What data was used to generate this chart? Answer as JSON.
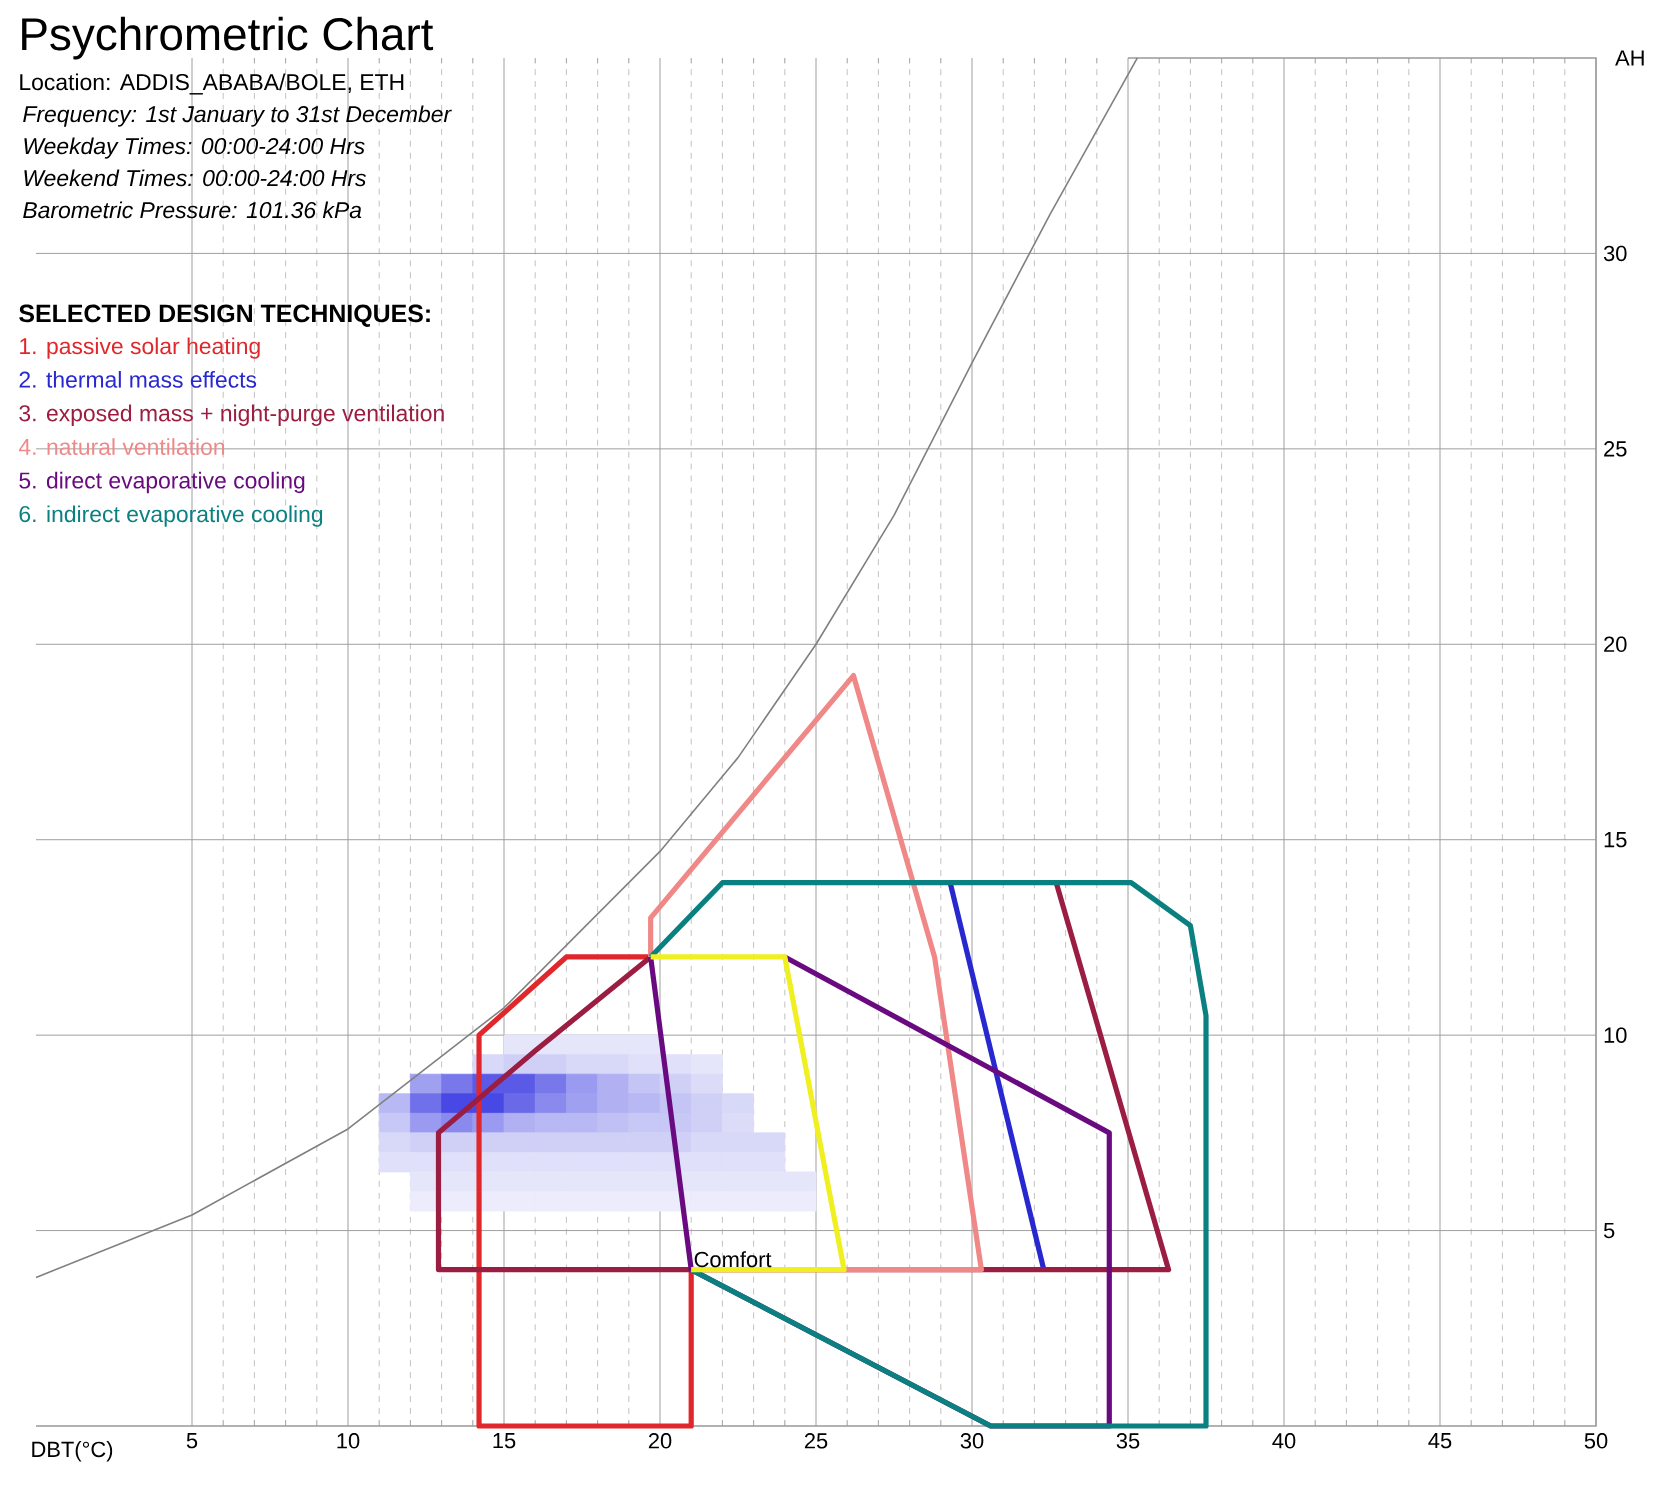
{
  "chart_data": {
    "type": "line",
    "title": "Psychrometric Chart",
    "subtitle": "Location: ADDIS_ABABA/BOLE, ETH",
    "annotations": [
      "Frequency: 1st January to 31st December",
      "Weekday Times: 00:00-24:00 Hrs",
      "Weekend Times: 00:00-24:00 Hrs",
      "Barometric Pressure: 101.36 kPa",
      {
        "text": "Comfort",
        "x": 21,
        "y": 4
      }
    ],
    "xlabel": "DBT(°C)",
    "ylabel": "AH",
    "legend_title": "SELECTED DESIGN TECHNIQUES:",
    "grid": true,
    "xlim": [
      0,
      50
    ],
    "ylim": [
      0,
      35
    ],
    "xticks": [
      5,
      10,
      15,
      20,
      25,
      30,
      35,
      40,
      45,
      50
    ],
    "yticks": [
      5,
      10,
      15,
      20,
      25,
      30
    ],
    "series": [
      {
        "type": "scatter",
        "marker": "square",
        "x": [
          15.5,
          16.5,
          17.5,
          18.5,
          19.5,
          14.5,
          15.5,
          16.5,
          17.5,
          18.5,
          19.5,
          20.5,
          21.5,
          12.5,
          13.5,
          14.5,
          15.5,
          16.5,
          17.5,
          18.5,
          19.5,
          20.5,
          21.5,
          11.5,
          12.5,
          13.5,
          14.5,
          15.5,
          16.5,
          17.5,
          18.5,
          19.5,
          20.5,
          21.5,
          22.5,
          11.5,
          12.5,
          13.5,
          14.5,
          15.5,
          16.5,
          17.5,
          18.5,
          19.5,
          20.5,
          21.5,
          22.5,
          11.5,
          12.5,
          13.5,
          14.5,
          15.5,
          16.5,
          17.5,
          18.5,
          19.5,
          20.5,
          21.5,
          22.5,
          23.5,
          11.5,
          12.5,
          13.5,
          14.5,
          15.5,
          16.5,
          17.5,
          18.5,
          19.5,
          20.5,
          21.5,
          22.5,
          23.5,
          12.5,
          13.5,
          14.5,
          15.5,
          16.5,
          17.5,
          18.5,
          19.5,
          20.5,
          21.5,
          22.5,
          23.5,
          24.5,
          12.5,
          13.5,
          14.5,
          15.5,
          16.5,
          17.5,
          18.5,
          19.5,
          20.5,
          21.5,
          22.5,
          23.5,
          24.5
        ],
        "values": [
          9.75,
          9.75,
          9.75,
          9.75,
          9.75,
          9.25,
          9.25,
          9.25,
          9.25,
          9.25,
          9.25,
          9.25,
          9.25,
          8.75,
          8.75,
          8.75,
          8.75,
          8.75,
          8.75,
          8.75,
          8.75,
          8.75,
          8.75,
          8.25,
          8.25,
          8.25,
          8.25,
          8.25,
          8.25,
          8.25,
          8.25,
          8.25,
          8.25,
          8.25,
          8.25,
          7.75,
          7.75,
          7.75,
          7.75,
          7.75,
          7.75,
          7.75,
          7.75,
          7.75,
          7.75,
          7.75,
          7.75,
          7.25,
          7.25,
          7.25,
          7.25,
          7.25,
          7.25,
          7.25,
          7.25,
          7.25,
          7.25,
          7.25,
          7.25,
          7.25,
          6.75,
          6.75,
          6.75,
          6.75,
          6.75,
          6.75,
          6.75,
          6.75,
          6.75,
          6.75,
          6.75,
          6.75,
          6.75,
          6.25,
          6.25,
          6.25,
          6.25,
          6.25,
          6.25,
          6.25,
          6.25,
          6.25,
          6.25,
          6.25,
          6.25,
          6.25,
          5.75,
          5.75,
          5.75,
          5.75,
          5.75,
          5.75,
          5.75,
          5.75,
          5.75,
          5.75,
          5.75,
          5.75,
          5.75
        ],
        "colors": [
          "#e6e6fb",
          "#e6e6fb",
          "#e6e6fb",
          "#e6e6fb",
          "#e6e6fb",
          "#d8d8f8",
          "#d0d0f7",
          "#d0d0f7",
          "#d8d8f8",
          "#d8d8f8",
          "#e0e0fa",
          "#e0e0fa",
          "#e6e6fb",
          "#a0a0f0",
          "#7878eb",
          "#5a5ae6",
          "#5a5ae6",
          "#7878eb",
          "#9a9af0",
          "#b0b0f2",
          "#c4c4f5",
          "#d0d0f7",
          "#dcdcf9",
          "#b8b8f4",
          "#7070ea",
          "#4848e4",
          "#4848e4",
          "#6a6ae9",
          "#8a8aee",
          "#a0a0f0",
          "#b0b0f2",
          "#b8b8f4",
          "#c4c4f5",
          "#d0d0f7",
          "#d8d8f8",
          "#c8c8f6",
          "#9a9af0",
          "#8a8aee",
          "#9a9af0",
          "#b0b0f2",
          "#b8b8f4",
          "#b8b8f4",
          "#c0c0f4",
          "#c8c8f6",
          "#c8c8f6",
          "#d0d0f7",
          "#dcdcf9",
          "#d8d8f8",
          "#d0d0f7",
          "#d0d0f7",
          "#d0d0f7",
          "#d0d0f7",
          "#d0d0f7",
          "#d0d0f7",
          "#d0d0f7",
          "#d0d0f7",
          "#d0d0f7",
          "#d8d8f8",
          "#d8d8f8",
          "#d8d8f8",
          "#e0e0fa",
          "#e0e0fa",
          "#e0e0fa",
          "#e0e0fa",
          "#e0e0fa",
          "#e0e0fa",
          "#e0e0fa",
          "#e0e0fa",
          "#e0e0fa",
          "#e0e0fa",
          "#e0e0fa",
          "#e0e0fa",
          "#e0e0fa",
          "#e6e6fb",
          "#e6e6fb",
          "#e6e6fb",
          "#e6e6fb",
          "#e6e6fb",
          "#e6e6fb",
          "#e6e6fb",
          "#e6e6fb",
          "#e6e6fb",
          "#e6e6fb",
          "#e6e6fb",
          "#e6e6fb",
          "#e6e6fb",
          "#ececfc",
          "#ececfc",
          "#ececfc",
          "#ececfc",
          "#ececfc",
          "#ececfc",
          "#ececfc",
          "#ececfc",
          "#ececfc",
          "#ececfc",
          "#ececfc",
          "#ececfc",
          "#ececfc"
        ]
      },
      {
        "color": "#808080",
        "x": [
          0,
          5,
          10,
          15,
          20,
          22.5,
          25,
          27.5,
          30,
          32.5,
          35.3
        ],
        "values": [
          3.8,
          5.4,
          7.6,
          10.7,
          14.7,
          17.1,
          20,
          23.3,
          27.2,
          31,
          35
        ]
      },
      {
        "name": "1. passive solar heating",
        "color": "#e0282c",
        "x": [
          21,
          21,
          14.2,
          14.2,
          17,
          19.7
        ],
        "values": [
          4,
          0,
          0,
          10,
          12,
          12
        ]
      },
      {
        "name": "2. thermal mass effects",
        "color": "#2828d0",
        "x": [
          29.3,
          32.3
        ],
        "values": [
          13.9,
          4
        ]
      },
      {
        "name": "3. exposed mass + night-purge ventilation",
        "color": "#9b1d42",
        "x": [
          32.7,
          36.3,
          12.9,
          12.9,
          16,
          19.7
        ],
        "values": [
          13.9,
          4,
          4,
          7.5,
          9.6,
          12
        ]
      },
      {
        "name": "4. natural ventilation",
        "color": "#f08888",
        "x": [
          19.7,
          19.7,
          26.2,
          28.8,
          30.3,
          21
        ],
        "values": [
          12,
          13,
          19.2,
          12,
          4,
          4
        ]
      },
      {
        "name": "5. direct evaporative cooling",
        "color": "#6a0a80",
        "x": [
          24,
          34.4,
          34.4,
          30.6,
          21,
          19.7
        ],
        "values": [
          12,
          7.5,
          0,
          0,
          4,
          12
        ]
      },
      {
        "name": "6. indirect evaporative cooling",
        "color": "#0a8080",
        "x": [
          21,
          30.6,
          37.5,
          37.5,
          37,
          35.1,
          22,
          19.7
        ],
        "values": [
          4,
          0,
          0,
          10.5,
          12.8,
          13.9,
          13.9,
          12
        ]
      },
      {
        "color": "#f0f020",
        "x": [
          19.7,
          24,
          25.9,
          21
        ],
        "values": [
          12,
          12,
          4,
          4
        ]
      }
    ]
  }
}
